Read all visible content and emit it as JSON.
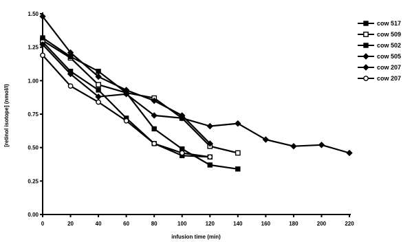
{
  "chart_data": {
    "type": "line",
    "title": "",
    "xlabel": "infusion time (min)",
    "ylabel": "[retinol isotope] (nmol/l)",
    "xlim": [
      0,
      220
    ],
    "ylim": [
      0,
      1.5
    ],
    "x_ticks": [
      "0",
      "20",
      "40",
      "60",
      "80",
      "100",
      "120",
      "140",
      "160",
      "180",
      "200",
      "220"
    ],
    "y_ticks": [
      "0.00",
      "0.25",
      "0.50",
      "0.75",
      "1.00",
      "1.25",
      "1.50"
    ],
    "grid": false,
    "legend_position": "right",
    "series": [
      {
        "name": "cow 517",
        "marker": "filled-square",
        "points": [
          [
            0,
            1.29
          ],
          [
            20,
            1.07
          ],
          [
            40,
            0.93
          ],
          [
            60,
            0.72
          ],
          [
            80,
            0.53
          ],
          [
            100,
            0.44
          ],
          [
            120,
            0.43
          ]
        ]
      },
      {
        "name": "cow 509",
        "marker": "open-square",
        "points": [
          [
            0,
            1.3
          ],
          [
            20,
            1.17
          ],
          [
            40,
            0.97
          ],
          [
            60,
            0.91
          ],
          [
            80,
            0.87
          ],
          [
            100,
            0.72
          ],
          [
            120,
            0.51
          ],
          [
            140,
            0.46
          ]
        ]
      },
      {
        "name": "cow 502",
        "marker": "filled-square",
        "points": [
          [
            0,
            1.32
          ],
          [
            20,
            1.18
          ],
          [
            40,
            1.07
          ],
          [
            60,
            0.91
          ],
          [
            80,
            0.64
          ],
          [
            100,
            0.49
          ],
          [
            120,
            0.37
          ],
          [
            140,
            0.34
          ]
        ]
      },
      {
        "name": "cow 505",
        "marker": "filled-diamond",
        "points": [
          [
            0,
            1.48
          ],
          [
            20,
            1.21
          ],
          [
            40,
            1.03
          ],
          [
            60,
            0.93
          ],
          [
            80,
            0.85
          ],
          [
            100,
            0.74
          ],
          [
            120,
            0.53
          ]
        ]
      },
      {
        "name": "cow 207",
        "marker": "filled-diamond",
        "points": [
          [
            0,
            1.27
          ],
          [
            20,
            1.05
          ],
          [
            40,
            0.88
          ],
          [
            60,
            0.9
          ],
          [
            80,
            0.74
          ],
          [
            100,
            0.72
          ],
          [
            120,
            0.66
          ],
          [
            140,
            0.68
          ],
          [
            160,
            0.56
          ],
          [
            180,
            0.51
          ],
          [
            200,
            0.52
          ],
          [
            220,
            0.46
          ]
        ]
      },
      {
        "name": "cow 207",
        "marker": "open-circle",
        "points": [
          [
            0,
            1.19
          ],
          [
            20,
            0.96
          ],
          [
            40,
            0.84
          ],
          [
            60,
            0.7
          ],
          [
            80,
            0.53
          ],
          [
            100,
            0.46
          ],
          [
            120,
            0.43
          ]
        ]
      }
    ]
  }
}
